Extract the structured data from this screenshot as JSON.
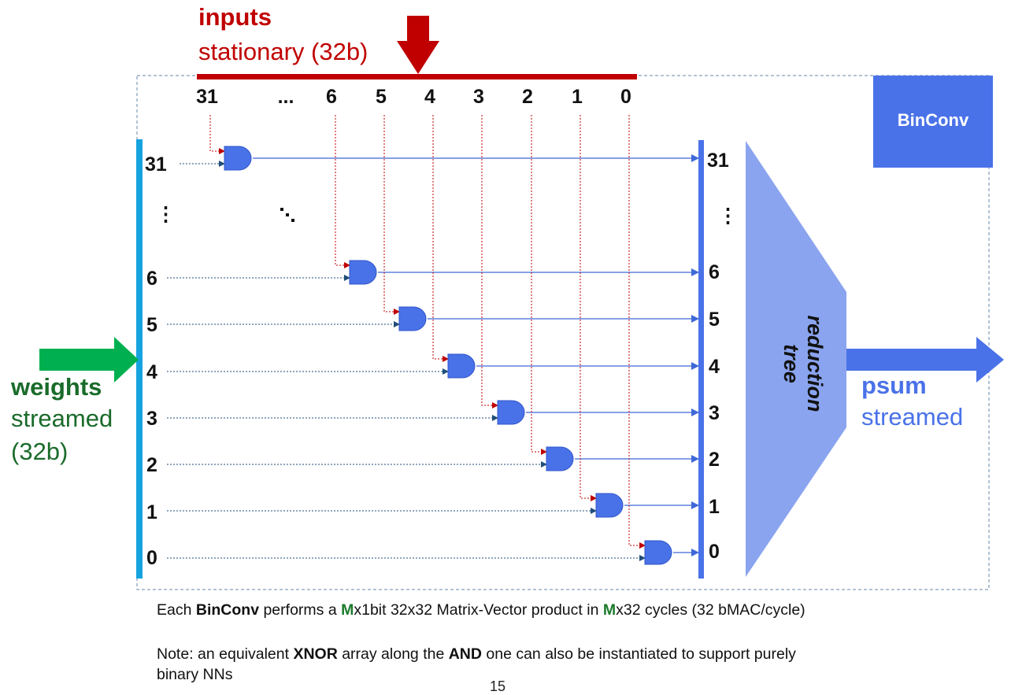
{
  "inputs": {
    "title": "inputs",
    "subtitle": "stationary (32b)"
  },
  "column_labels": [
    "31",
    "...",
    "6",
    "5",
    "4",
    "3",
    "2",
    "1",
    "0"
  ],
  "row_labels_left": [
    "31",
    "⋮",
    "6",
    "5",
    "4",
    "3",
    "2",
    "1",
    "0"
  ],
  "row_labels_right": [
    "31",
    "⋮",
    "6",
    "5",
    "4",
    "3",
    "2",
    "1",
    "0"
  ],
  "block_label": "BinConv",
  "reduction": {
    "line1": "reduction",
    "line2": "tree"
  },
  "weights": {
    "title": "weights",
    "sub1": "streamed",
    "sub2": "(32b)"
  },
  "psum": {
    "title": "psum",
    "sub": "streamed"
  },
  "caption1": {
    "pre": "Each ",
    "bold1": "BinConv",
    "mid1": " performs a ",
    "m1": "M",
    "mid2": "x1bit 32x32 Matrix-Vector product in ",
    "m2": "M",
    "post": "x32 cycles (32 bMAC/cycle)"
  },
  "caption2": {
    "pre": "Note: an equivalent ",
    "bold1": "XNOR",
    "mid1": " array along the ",
    "bold2": "AND",
    "post": " one can also be instantiated to support purely",
    "line2": "binary NNs"
  },
  "page_number": "15",
  "colors": {
    "input_red": "#c00000",
    "weight_green": "#1a6b2a",
    "gate_blue": "#4a72e8",
    "bus_cyan": "#16a3e0",
    "arrow_green": "#00b050",
    "reduction_fill": "#8aa4ef"
  }
}
